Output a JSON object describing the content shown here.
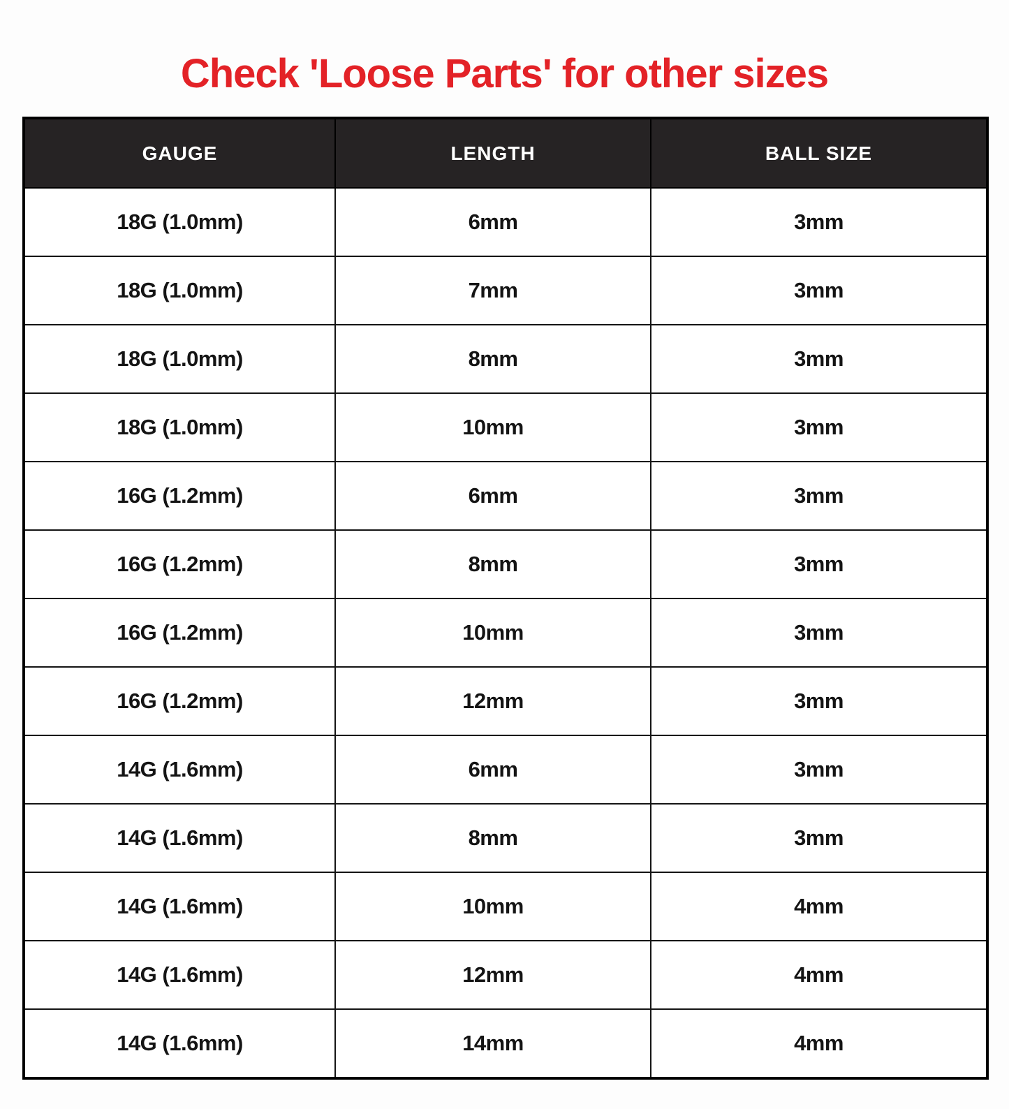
{
  "title": {
    "text": "Check 'Loose Parts' for other sizes",
    "color": "#e32227"
  },
  "table": {
    "header_bg": "#262324",
    "header_text_color": "#ffffff",
    "headers": {
      "gauge": "GAUGE",
      "length": "LENGTH",
      "ball_size": "BALL SIZE"
    },
    "rows": [
      {
        "gauge": "18G (1.0mm)",
        "length": "6mm",
        "ball_size": "3mm"
      },
      {
        "gauge": "18G (1.0mm)",
        "length": "7mm",
        "ball_size": "3mm"
      },
      {
        "gauge": "18G (1.0mm)",
        "length": "8mm",
        "ball_size": "3mm"
      },
      {
        "gauge": "18G (1.0mm)",
        "length": "10mm",
        "ball_size": "3mm"
      },
      {
        "gauge": "16G (1.2mm)",
        "length": "6mm",
        "ball_size": "3mm"
      },
      {
        "gauge": "16G (1.2mm)",
        "length": "8mm",
        "ball_size": "3mm"
      },
      {
        "gauge": "16G (1.2mm)",
        "length": "10mm",
        "ball_size": "3mm"
      },
      {
        "gauge": "16G (1.2mm)",
        "length": "12mm",
        "ball_size": "3mm"
      },
      {
        "gauge": "14G (1.6mm)",
        "length": "6mm",
        "ball_size": "3mm"
      },
      {
        "gauge": "14G (1.6mm)",
        "length": "8mm",
        "ball_size": "3mm"
      },
      {
        "gauge": "14G (1.6mm)",
        "length": "10mm",
        "ball_size": "4mm"
      },
      {
        "gauge": "14G (1.6mm)",
        "length": "12mm",
        "ball_size": "4mm"
      },
      {
        "gauge": "14G (1.6mm)",
        "length": "14mm",
        "ball_size": "4mm"
      }
    ]
  },
  "chart_data": {
    "type": "table",
    "title": "Check 'Loose Parts' for other sizes",
    "columns": [
      "GAUGE",
      "LENGTH",
      "BALL SIZE"
    ],
    "rows": [
      [
        "18G (1.0mm)",
        "6mm",
        "3mm"
      ],
      [
        "18G (1.0mm)",
        "7mm",
        "3mm"
      ],
      [
        "18G (1.0mm)",
        "8mm",
        "3mm"
      ],
      [
        "18G (1.0mm)",
        "10mm",
        "3mm"
      ],
      [
        "16G (1.2mm)",
        "6mm",
        "3mm"
      ],
      [
        "16G (1.2mm)",
        "8mm",
        "3mm"
      ],
      [
        "16G (1.2mm)",
        "10mm",
        "3mm"
      ],
      [
        "16G (1.2mm)",
        "12mm",
        "3mm"
      ],
      [
        "14G (1.6mm)",
        "6mm",
        "3mm"
      ],
      [
        "14G (1.6mm)",
        "8mm",
        "3mm"
      ],
      [
        "14G (1.6mm)",
        "10mm",
        "4mm"
      ],
      [
        "14G (1.6mm)",
        "12mm",
        "4mm"
      ],
      [
        "14G (1.6mm)",
        "14mm",
        "4mm"
      ]
    ]
  }
}
